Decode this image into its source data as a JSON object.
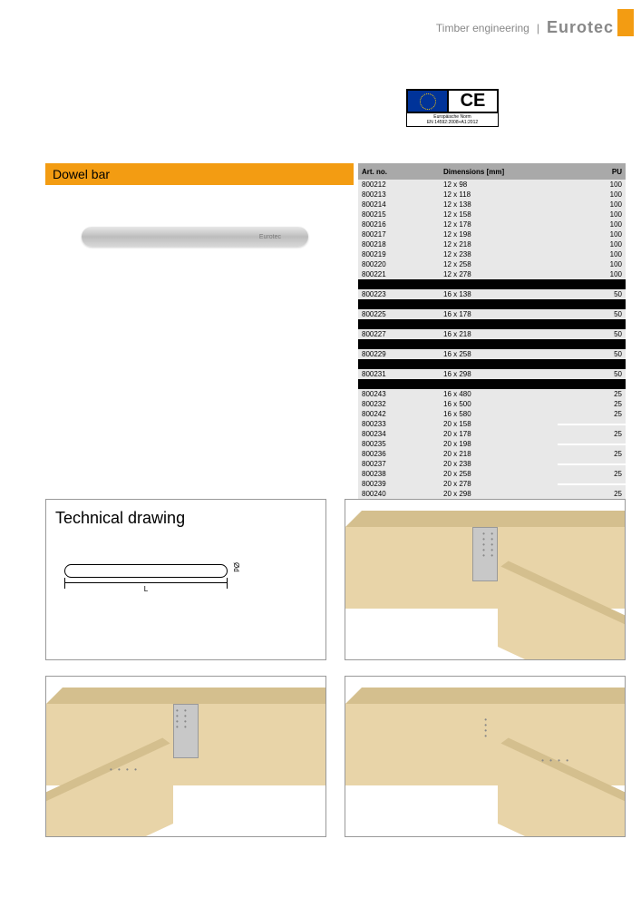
{
  "header": {
    "category": "Timber engineering",
    "brand": "Eurotec"
  },
  "ce": {
    "standard": "Europäische Norm",
    "code": "EN 14592:2008+A1:2012",
    "label": "CE"
  },
  "title": "Dowel bar",
  "product_logo": "Eurotec",
  "table": {
    "headers": {
      "art": "Art. no.",
      "dim": "Dimensions [mm]",
      "pu": "PU"
    },
    "rows": [
      {
        "art": "800212",
        "dim": "12 x 98",
        "pu": "100",
        "style": ""
      },
      {
        "art": "800213",
        "dim": "12 x 118",
        "pu": "100",
        "style": ""
      },
      {
        "art": "800214",
        "dim": "12 x 138",
        "pu": "100",
        "style": ""
      },
      {
        "art": "800215",
        "dim": "12 x 158",
        "pu": "100",
        "style": ""
      },
      {
        "art": "800216",
        "dim": "12 x 178",
        "pu": "100",
        "style": ""
      },
      {
        "art": "800217",
        "dim": "12 x 198",
        "pu": "100",
        "style": ""
      },
      {
        "art": "800218",
        "dim": "12 x 218",
        "pu": "100",
        "style": ""
      },
      {
        "art": "800219",
        "dim": "12 x 238",
        "pu": "100",
        "style": ""
      },
      {
        "art": "800220",
        "dim": "12 x 258",
        "pu": "100",
        "style": ""
      },
      {
        "art": "800221",
        "dim": "12 x 278",
        "pu": "100",
        "style": ""
      },
      {
        "art": "",
        "dim": "",
        "pu": "",
        "style": "black"
      },
      {
        "art": "800223",
        "dim": "16 x 138",
        "pu": "50",
        "style": ""
      },
      {
        "art": "",
        "dim": "",
        "pu": "",
        "style": "black"
      },
      {
        "art": "800225",
        "dim": "16 x 178",
        "pu": "50",
        "style": ""
      },
      {
        "art": "",
        "dim": "",
        "pu": "",
        "style": "black"
      },
      {
        "art": "800227",
        "dim": "16 x 218",
        "pu": "50",
        "style": ""
      },
      {
        "art": "",
        "dim": "",
        "pu": "",
        "style": "black"
      },
      {
        "art": "800229",
        "dim": "16 x 258",
        "pu": "50",
        "style": ""
      },
      {
        "art": "",
        "dim": "",
        "pu": "",
        "style": "black"
      },
      {
        "art": "800231",
        "dim": "16 x 298",
        "pu": "50",
        "style": ""
      },
      {
        "art": "",
        "dim": "",
        "pu": "",
        "style": "black"
      },
      {
        "art": "800243",
        "dim": "16 x 480",
        "pu": "25",
        "style": ""
      },
      {
        "art": "800232",
        "dim": "16 x 500",
        "pu": "25",
        "style": ""
      },
      {
        "art": "800242",
        "dim": "16 x 580",
        "pu": "25",
        "style": ""
      },
      {
        "art": "800233",
        "dim": "20 x 158",
        "pu": "",
        "style": "",
        "blankpu": true
      },
      {
        "art": "800234",
        "dim": "20 x 178",
        "pu": "25",
        "style": ""
      },
      {
        "art": "800235",
        "dim": "20 x 198",
        "pu": "",
        "style": "",
        "blankpu": true
      },
      {
        "art": "800236",
        "dim": "20 x 218",
        "pu": "25",
        "style": ""
      },
      {
        "art": "800237",
        "dim": "20 x 238",
        "pu": "",
        "style": "",
        "blankpu": true
      },
      {
        "art": "800238",
        "dim": "20 x 258",
        "pu": "25",
        "style": ""
      },
      {
        "art": "800239",
        "dim": "20 x 278",
        "pu": "",
        "style": "",
        "blankpu": true
      },
      {
        "art": "800240",
        "dim": "20 x 298",
        "pu": "25",
        "style": ""
      }
    ]
  },
  "tech": {
    "title": "Technical drawing",
    "dim_L": "L",
    "dim_D": "Ød"
  },
  "colors": {
    "accent": "#f39c12",
    "wood_light": "#e8d4a8",
    "wood_dark": "#d4bf8e",
    "steel": "#c8c8c8"
  }
}
